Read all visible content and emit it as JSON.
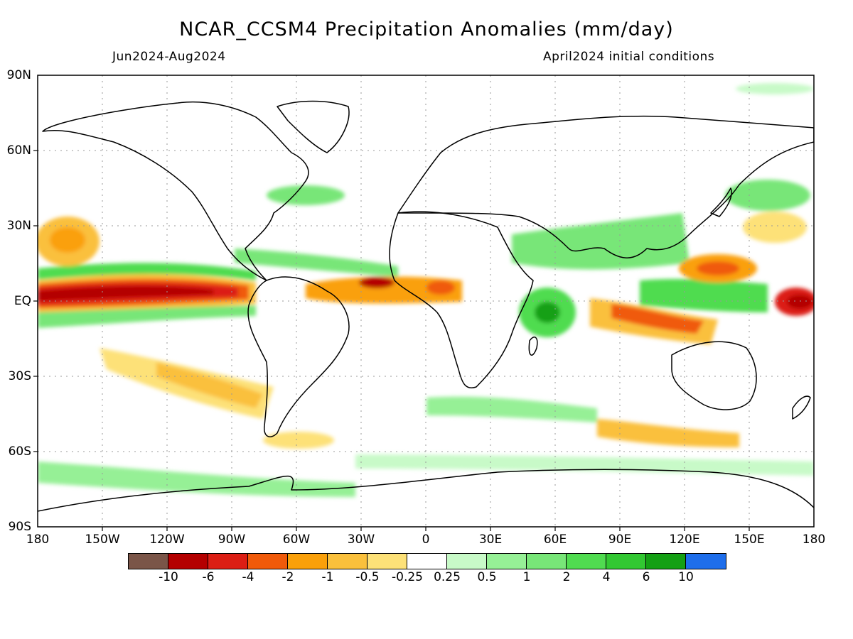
{
  "header": {
    "title": "NCAR_CCSM4 Precipitation Anomalies (mm/day)",
    "period": "Jun2024-Aug2024",
    "initial_conditions": "April2024 initial conditions"
  },
  "axes": {
    "lat_labels": [
      "90N",
      "60N",
      "30N",
      "EQ",
      "30S",
      "60S",
      "90S"
    ],
    "lon_labels": [
      "180",
      "150W",
      "120W",
      "90W",
      "60W",
      "30W",
      "0",
      "30E",
      "60E",
      "90E",
      "120E",
      "150E",
      "180"
    ]
  },
  "colorbar": {
    "colors": [
      "#7a5548",
      "#b40000",
      "#dc1e14",
      "#f05a0a",
      "#faa00a",
      "#fac03c",
      "#fde178",
      "#ffffff",
      "#c8fac8",
      "#96f096",
      "#78e678",
      "#50dc50",
      "#32c832",
      "#14a014",
      "#1e6eeb"
    ],
    "labels": [
      "-10",
      "-6",
      "-4",
      "-2",
      "-1",
      "-0.5",
      "-0.25",
      "0.25",
      "0.5",
      "1",
      "2",
      "4",
      "6",
      "10"
    ]
  }
}
